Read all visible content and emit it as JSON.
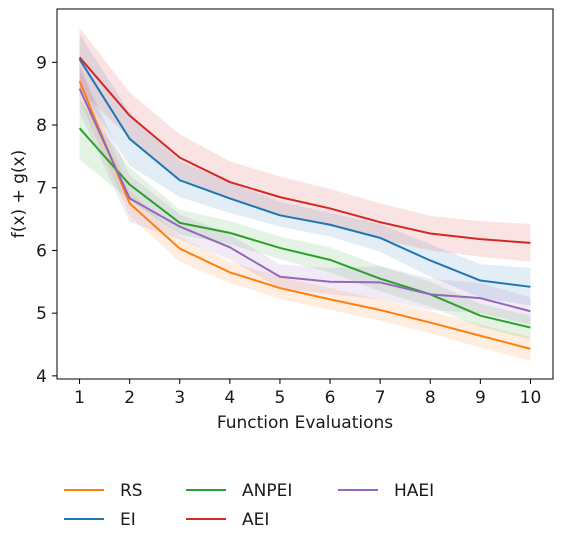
{
  "chart_data": {
    "type": "line",
    "title": "",
    "xlabel": "Function Evaluations",
    "ylabel": "f(x) + g(x)",
    "x": [
      1,
      2,
      3,
      4,
      5,
      6,
      7,
      8,
      9,
      10
    ],
    "xticks": [
      "1",
      "2",
      "3",
      "4",
      "5",
      "6",
      "7",
      "8",
      "9",
      "10"
    ],
    "yticks": [
      4,
      5,
      6,
      7,
      8,
      9
    ],
    "xlim": [
      0.55,
      10.45
    ],
    "ylim": [
      3.95,
      9.85
    ],
    "grid": false,
    "legend_position": "bottom",
    "series": [
      {
        "name": "RS",
        "color": "#ff7f0e",
        "values": [
          8.7,
          6.75,
          6.03,
          5.65,
          5.4,
          5.22,
          5.05,
          4.85,
          4.64,
          4.43
        ],
        "lower": [
          8.4,
          6.55,
          5.82,
          5.48,
          5.23,
          5.05,
          4.88,
          4.68,
          4.45,
          4.24
        ],
        "upper": [
          8.95,
          6.95,
          6.22,
          5.82,
          5.58,
          5.4,
          5.22,
          5.03,
          4.82,
          4.62
        ]
      },
      {
        "name": "EI",
        "color": "#1f77b4",
        "values": [
          9.05,
          7.78,
          7.12,
          6.83,
          6.56,
          6.41,
          6.2,
          5.84,
          5.52,
          5.42
        ],
        "lower": [
          8.6,
          7.35,
          6.85,
          6.6,
          6.38,
          6.22,
          5.98,
          5.58,
          5.25,
          5.12
        ],
        "upper": [
          9.45,
          8.2,
          7.42,
          7.08,
          6.78,
          6.6,
          6.42,
          6.1,
          5.78,
          5.72
        ]
      },
      {
        "name": "ANPEI",
        "color": "#2ca02c",
        "values": [
          7.95,
          7.05,
          6.44,
          6.28,
          6.04,
          5.85,
          5.55,
          5.3,
          4.96,
          4.77
        ],
        "lower": [
          7.45,
          6.8,
          6.25,
          6.1,
          5.86,
          5.65,
          5.35,
          5.1,
          4.78,
          4.58
        ],
        "upper": [
          8.4,
          7.32,
          6.65,
          6.47,
          6.22,
          6.05,
          5.75,
          5.5,
          5.15,
          4.96
        ]
      },
      {
        "name": "AEI",
        "color": "#d62728",
        "values": [
          9.08,
          8.15,
          7.48,
          7.09,
          6.85,
          6.67,
          6.45,
          6.27,
          6.18,
          6.12
        ],
        "lower": [
          8.55,
          7.8,
          7.15,
          6.82,
          6.55,
          6.4,
          6.18,
          6.0,
          5.9,
          5.82
        ],
        "upper": [
          9.55,
          8.52,
          7.85,
          7.42,
          7.18,
          6.98,
          6.75,
          6.55,
          6.47,
          6.42
        ]
      },
      {
        "name": "HAEI",
        "color": "#9467bd",
        "values": [
          8.58,
          6.83,
          6.38,
          6.05,
          5.58,
          5.5,
          5.49,
          5.3,
          5.24,
          5.03
        ],
        "lower": [
          8.2,
          6.45,
          6.18,
          5.85,
          5.4,
          5.3,
          5.22,
          5.05,
          5.0,
          4.82
        ],
        "upper": [
          8.95,
          7.2,
          6.58,
          6.25,
          5.78,
          5.72,
          5.75,
          5.55,
          5.48,
          5.25
        ]
      }
    ]
  },
  "legend": [
    {
      "label": "RS",
      "color": "#ff7f0e"
    },
    {
      "label": "EI",
      "color": "#1f77b4"
    },
    {
      "label": "ANPEI",
      "color": "#2ca02c"
    },
    {
      "label": "AEI",
      "color": "#d62728"
    },
    {
      "label": "HAEI",
      "color": "#9467bd"
    }
  ]
}
